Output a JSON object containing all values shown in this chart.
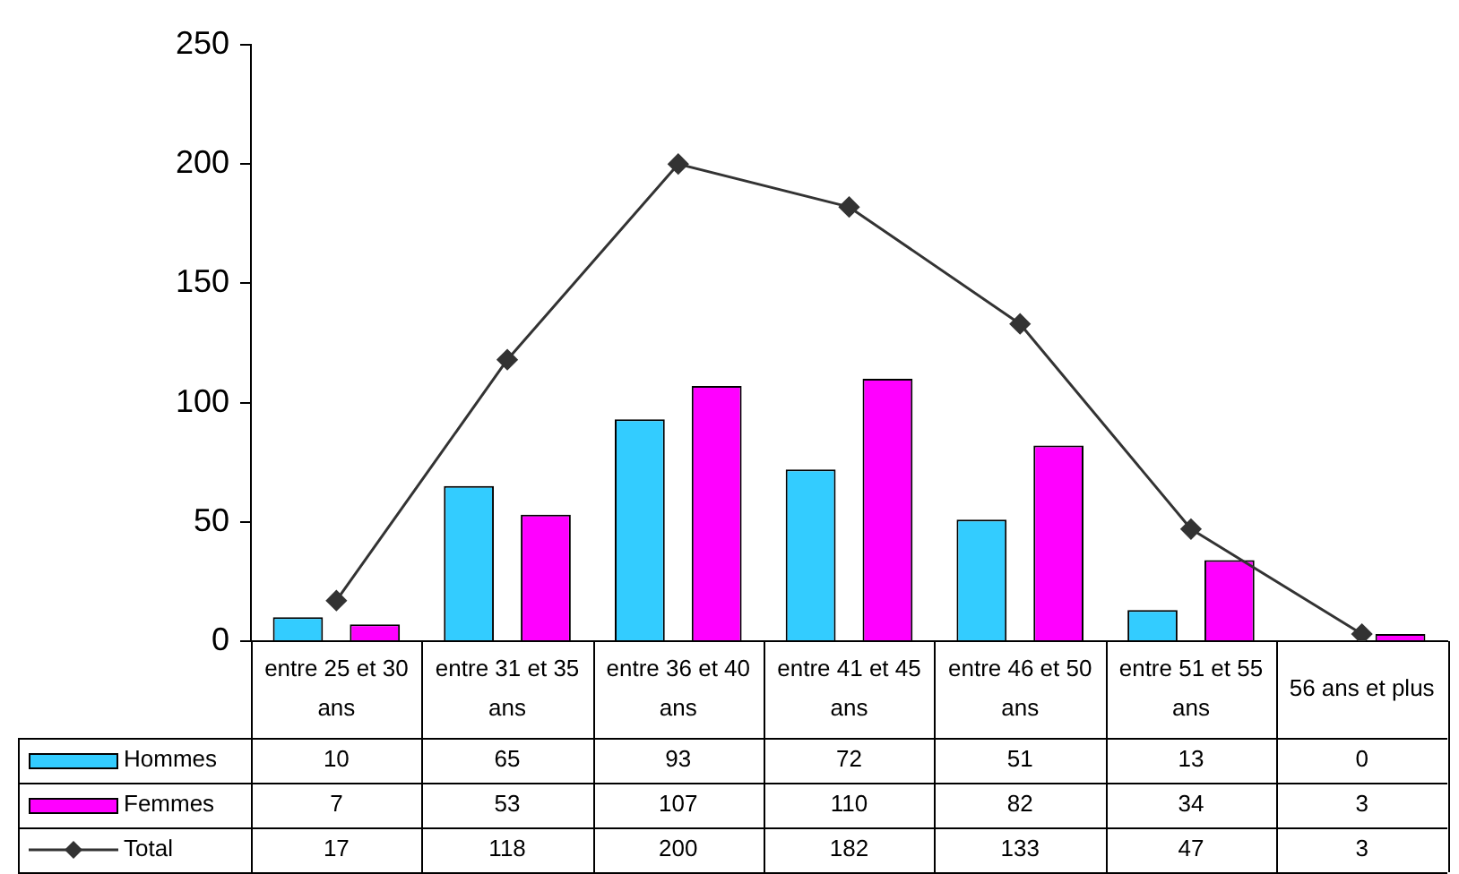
{
  "chart_data": {
    "type": "bar",
    "categories": [
      "entre 25 et 30 ans",
      "entre 31 et 35 ans",
      "entre 36 et 40 ans",
      "entre 41 et 45 ans",
      "entre 46 et 50 ans",
      "entre 51 et 55 ans",
      "56 ans et plus"
    ],
    "series": [
      {
        "name": "Hommes",
        "color": "#33ccff",
        "values": [
          10,
          65,
          93,
          72,
          51,
          13,
          0
        ]
      },
      {
        "name": "Femmes",
        "color": "#ff00ff",
        "values": [
          7,
          53,
          107,
          110,
          82,
          34,
          3
        ]
      },
      {
        "name": "Total",
        "type": "line",
        "color": "#333333",
        "values": [
          17,
          118,
          200,
          182,
          133,
          47,
          3
        ]
      }
    ],
    "ylim": [
      0,
      250
    ],
    "yticks": [
      0,
      50,
      100,
      150,
      200,
      250
    ],
    "grid": false,
    "legend": "bottom",
    "marker": "diamond",
    "data_labels": true
  }
}
